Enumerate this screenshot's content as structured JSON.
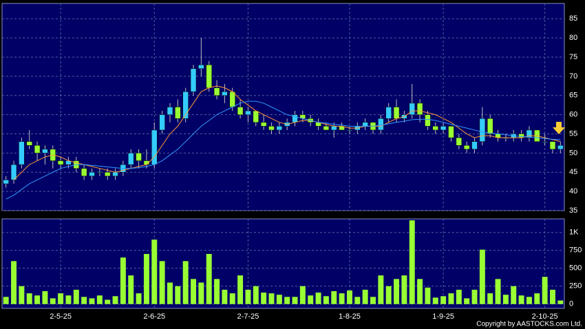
{
  "chart_data": {
    "type": "candlestick",
    "categories": [
      null,
      null,
      null,
      null,
      null,
      null,
      null,
      "2-5-25",
      null,
      null,
      null,
      null,
      null,
      null,
      null,
      null,
      null,
      null,
      null,
      "2-6-25",
      null,
      null,
      null,
      null,
      null,
      null,
      null,
      null,
      null,
      null,
      null,
      "2-7-25",
      null,
      null,
      null,
      null,
      null,
      null,
      null,
      null,
      null,
      null,
      null,
      null,
      "1-8-25",
      null,
      null,
      null,
      null,
      null,
      null,
      null,
      null,
      null,
      null,
      null,
      "1-9-25",
      null,
      null,
      null,
      null,
      null,
      null,
      null,
      null,
      null,
      null,
      null,
      null,
      "2-10-25",
      null,
      null
    ],
    "open": [
      42,
      43,
      47,
      53,
      52,
      50,
      51,
      48,
      47,
      48,
      46,
      44,
      45,
      45,
      44,
      45,
      47,
      50,
      48,
      47,
      56,
      60,
      62,
      59,
      66,
      72,
      73,
      67,
      65,
      66,
      62,
      60,
      61,
      58,
      57,
      56,
      57,
      58,
      60,
      59,
      58,
      57,
      56,
      57,
      56,
      56,
      57,
      58,
      56,
      59,
      62,
      59,
      60,
      63,
      60,
      57,
      56,
      57,
      54,
      52,
      51,
      53,
      59,
      55,
      54,
      54,
      55,
      54,
      56,
      53,
      53,
      51
    ],
    "high": [
      44,
      48,
      54,
      56,
      53,
      52,
      52,
      49,
      49,
      49,
      47,
      46,
      46,
      46,
      46,
      48,
      51,
      51,
      51,
      58,
      61,
      63,
      64,
      67,
      73,
      80,
      74,
      69,
      68,
      67,
      64,
      62,
      61,
      60,
      58,
      58,
      59,
      61,
      61,
      60,
      59,
      58,
      58,
      58,
      57,
      58,
      59,
      58,
      60,
      63,
      64,
      61,
      68,
      64,
      61,
      58,
      58,
      57,
      55,
      53,
      54,
      62,
      60,
      56,
      55,
      56,
      56,
      57,
      56,
      55,
      53,
      53
    ],
    "low": [
      41,
      42,
      46,
      51,
      48,
      47,
      46,
      46,
      46,
      45,
      43,
      43,
      44,
      43,
      43,
      44,
      46,
      46,
      46,
      46,
      55,
      58,
      58,
      58,
      65,
      70,
      66,
      64,
      63,
      61,
      59,
      58,
      57,
      56,
      55,
      55,
      56,
      57,
      58,
      57,
      56,
      56,
      54,
      56,
      55,
      55,
      56,
      55,
      55,
      58,
      58,
      58,
      59,
      58,
      56,
      55,
      55,
      53,
      51,
      50,
      50,
      52,
      54,
      53,
      53,
      53,
      53,
      53,
      53,
      52,
      50,
      50
    ],
    "close": [
      43,
      47,
      53,
      52,
      50,
      51,
      48,
      47,
      48,
      46,
      44,
      45,
      45,
      44,
      45,
      47,
      50,
      48,
      47,
      56,
      60,
      62,
      59,
      66,
      72,
      73,
      67,
      65,
      66,
      62,
      60,
      61,
      58,
      57,
      56,
      57,
      58,
      60,
      59,
      58,
      57,
      56,
      57,
      56,
      56,
      57,
      58,
      56,
      59,
      62,
      59,
      60,
      63,
      60,
      57,
      56,
      57,
      54,
      52,
      51,
      53,
      59,
      55,
      54,
      54,
      55,
      54,
      56,
      53,
      53,
      51,
      52
    ],
    "up_color": "#33ccff",
    "down_color": "#99ff33",
    "ylim": [
      35,
      89
    ],
    "yticks": [
      35,
      40,
      45,
      50,
      55,
      60,
      65,
      70,
      75,
      80,
      85
    ],
    "grid": true,
    "ma": [
      {
        "color": "#ff9933",
        "values": [
          null,
          43,
          45,
          47,
          48,
          49,
          49.5,
          49,
          48,
          47.5,
          47,
          46.5,
          46,
          45.5,
          45,
          45.5,
          46,
          46.5,
          47,
          49,
          52,
          55,
          57,
          60,
          63,
          66,
          67,
          67.5,
          67,
          66,
          64,
          62.5,
          61,
          60,
          59,
          58,
          57.5,
          58,
          58.5,
          58.5,
          58,
          57.5,
          57,
          57,
          56.5,
          56.5,
          57,
          57,
          57,
          58,
          59,
          59.5,
          61,
          61,
          60.5,
          60,
          59,
          58,
          56.5,
          55,
          54,
          54.5,
          54.5,
          54,
          54,
          54,
          54,
          54.5,
          54.5,
          54,
          53.5,
          53
        ]
      },
      {
        "color": "#3399ff",
        "values": [
          38,
          39,
          40.5,
          42,
          43,
          44,
          45,
          46,
          46.5,
          47,
          47,
          46.8,
          46.6,
          46.4,
          46.2,
          46,
          46,
          46.2,
          46.5,
          47,
          48,
          49.5,
          51,
          53,
          55,
          57,
          58.5,
          60,
          61,
          62,
          63,
          63.5,
          63.5,
          63,
          62,
          61,
          60,
          59.5,
          59,
          58.5,
          58,
          57.8,
          57.5,
          57.3,
          57,
          57,
          57,
          57,
          57.3,
          57.6,
          58,
          58.3,
          58.7,
          58.8,
          58.8,
          58.5,
          58,
          57.5,
          57,
          56.5,
          56,
          55.5,
          55.2,
          55,
          54.8,
          54.5,
          54.3,
          54.2,
          54,
          53.8,
          53.6,
          53.5
        ]
      }
    ],
    "volume": {
      "color": "#99ff33",
      "values": [
        100,
        600,
        250,
        150,
        120,
        180,
        80,
        150,
        120,
        200,
        100,
        80,
        120,
        60,
        110,
        650,
        400,
        150,
        700,
        900,
        600,
        300,
        250,
        600,
        350,
        300,
        700,
        350,
        200,
        150,
        400,
        200,
        250,
        160,
        150,
        130,
        100,
        100,
        250,
        120,
        160,
        110,
        180,
        150,
        190,
        100,
        200,
        100,
        400,
        250,
        350,
        400,
        1170,
        350,
        230,
        90,
        110,
        150,
        200,
        80,
        200,
        760,
        150,
        350,
        130,
        250,
        120,
        100,
        150,
        380,
        200,
        50
      ],
      "ylim": [
        -60,
        1190
      ],
      "yticks": [
        0,
        250,
        500,
        750,
        {
          "value": 1000,
          "label": "1K"
        }
      ]
    }
  },
  "footer": {
    "copyright": "Copyright by AASTOCKS.com Ltd."
  }
}
